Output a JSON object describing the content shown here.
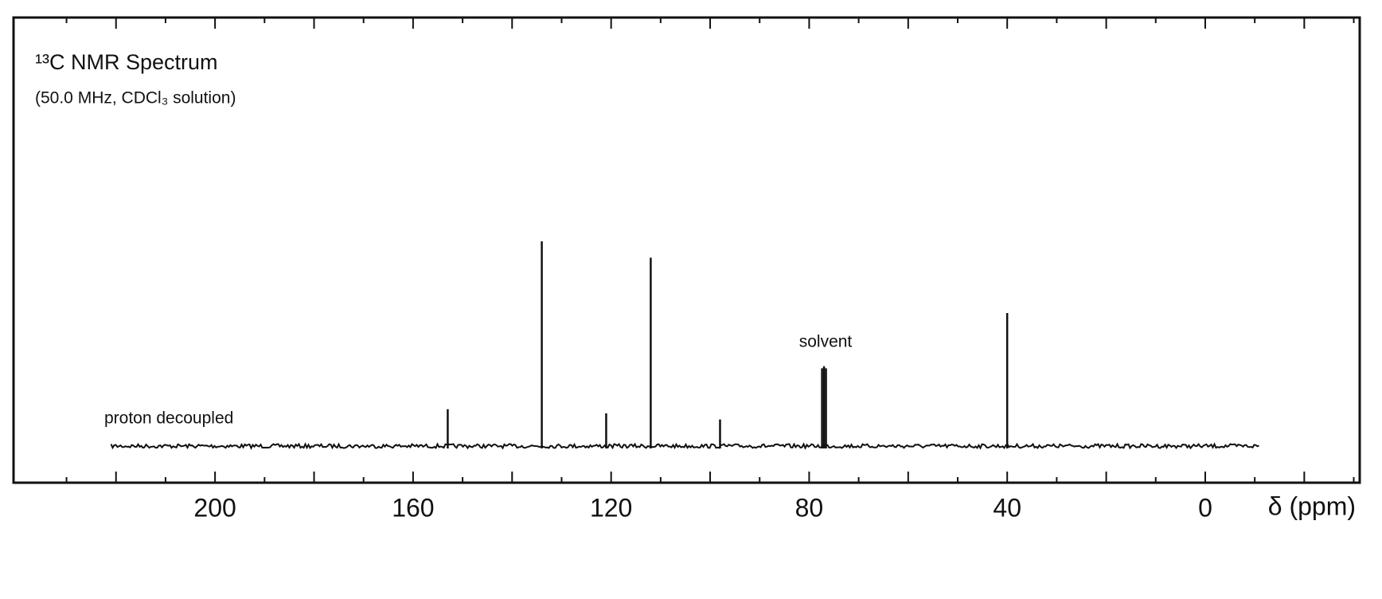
{
  "chart_data": {
    "type": "stick",
    "title": "¹³C NMR Spectrum",
    "subtitle": "(50.0 MHz, CDCl₃ solution)",
    "annotations": [
      "proton decoupled",
      "solvent"
    ],
    "x_label": "δ (ppm)",
    "x": [
      153,
      134,
      121,
      112,
      98,
      77.4,
      77.0,
      76.6,
      40
    ],
    "values": [
      18,
      100,
      16,
      92,
      13,
      38,
      39,
      38,
      65
    ],
    "color": "#111111",
    "xlim": [
      240.7,
      -31.2
    ],
    "xticks": [
      200,
      160,
      120,
      80,
      40,
      0
    ],
    "xticks_minor": [
      230,
      220,
      210,
      190,
      180,
      170,
      150,
      140,
      130,
      110,
      100,
      90,
      70,
      60,
      50,
      30,
      20,
      10,
      -10,
      -20,
      -30
    ],
    "trace_xlim": [
      221,
      -11
    ]
  }
}
